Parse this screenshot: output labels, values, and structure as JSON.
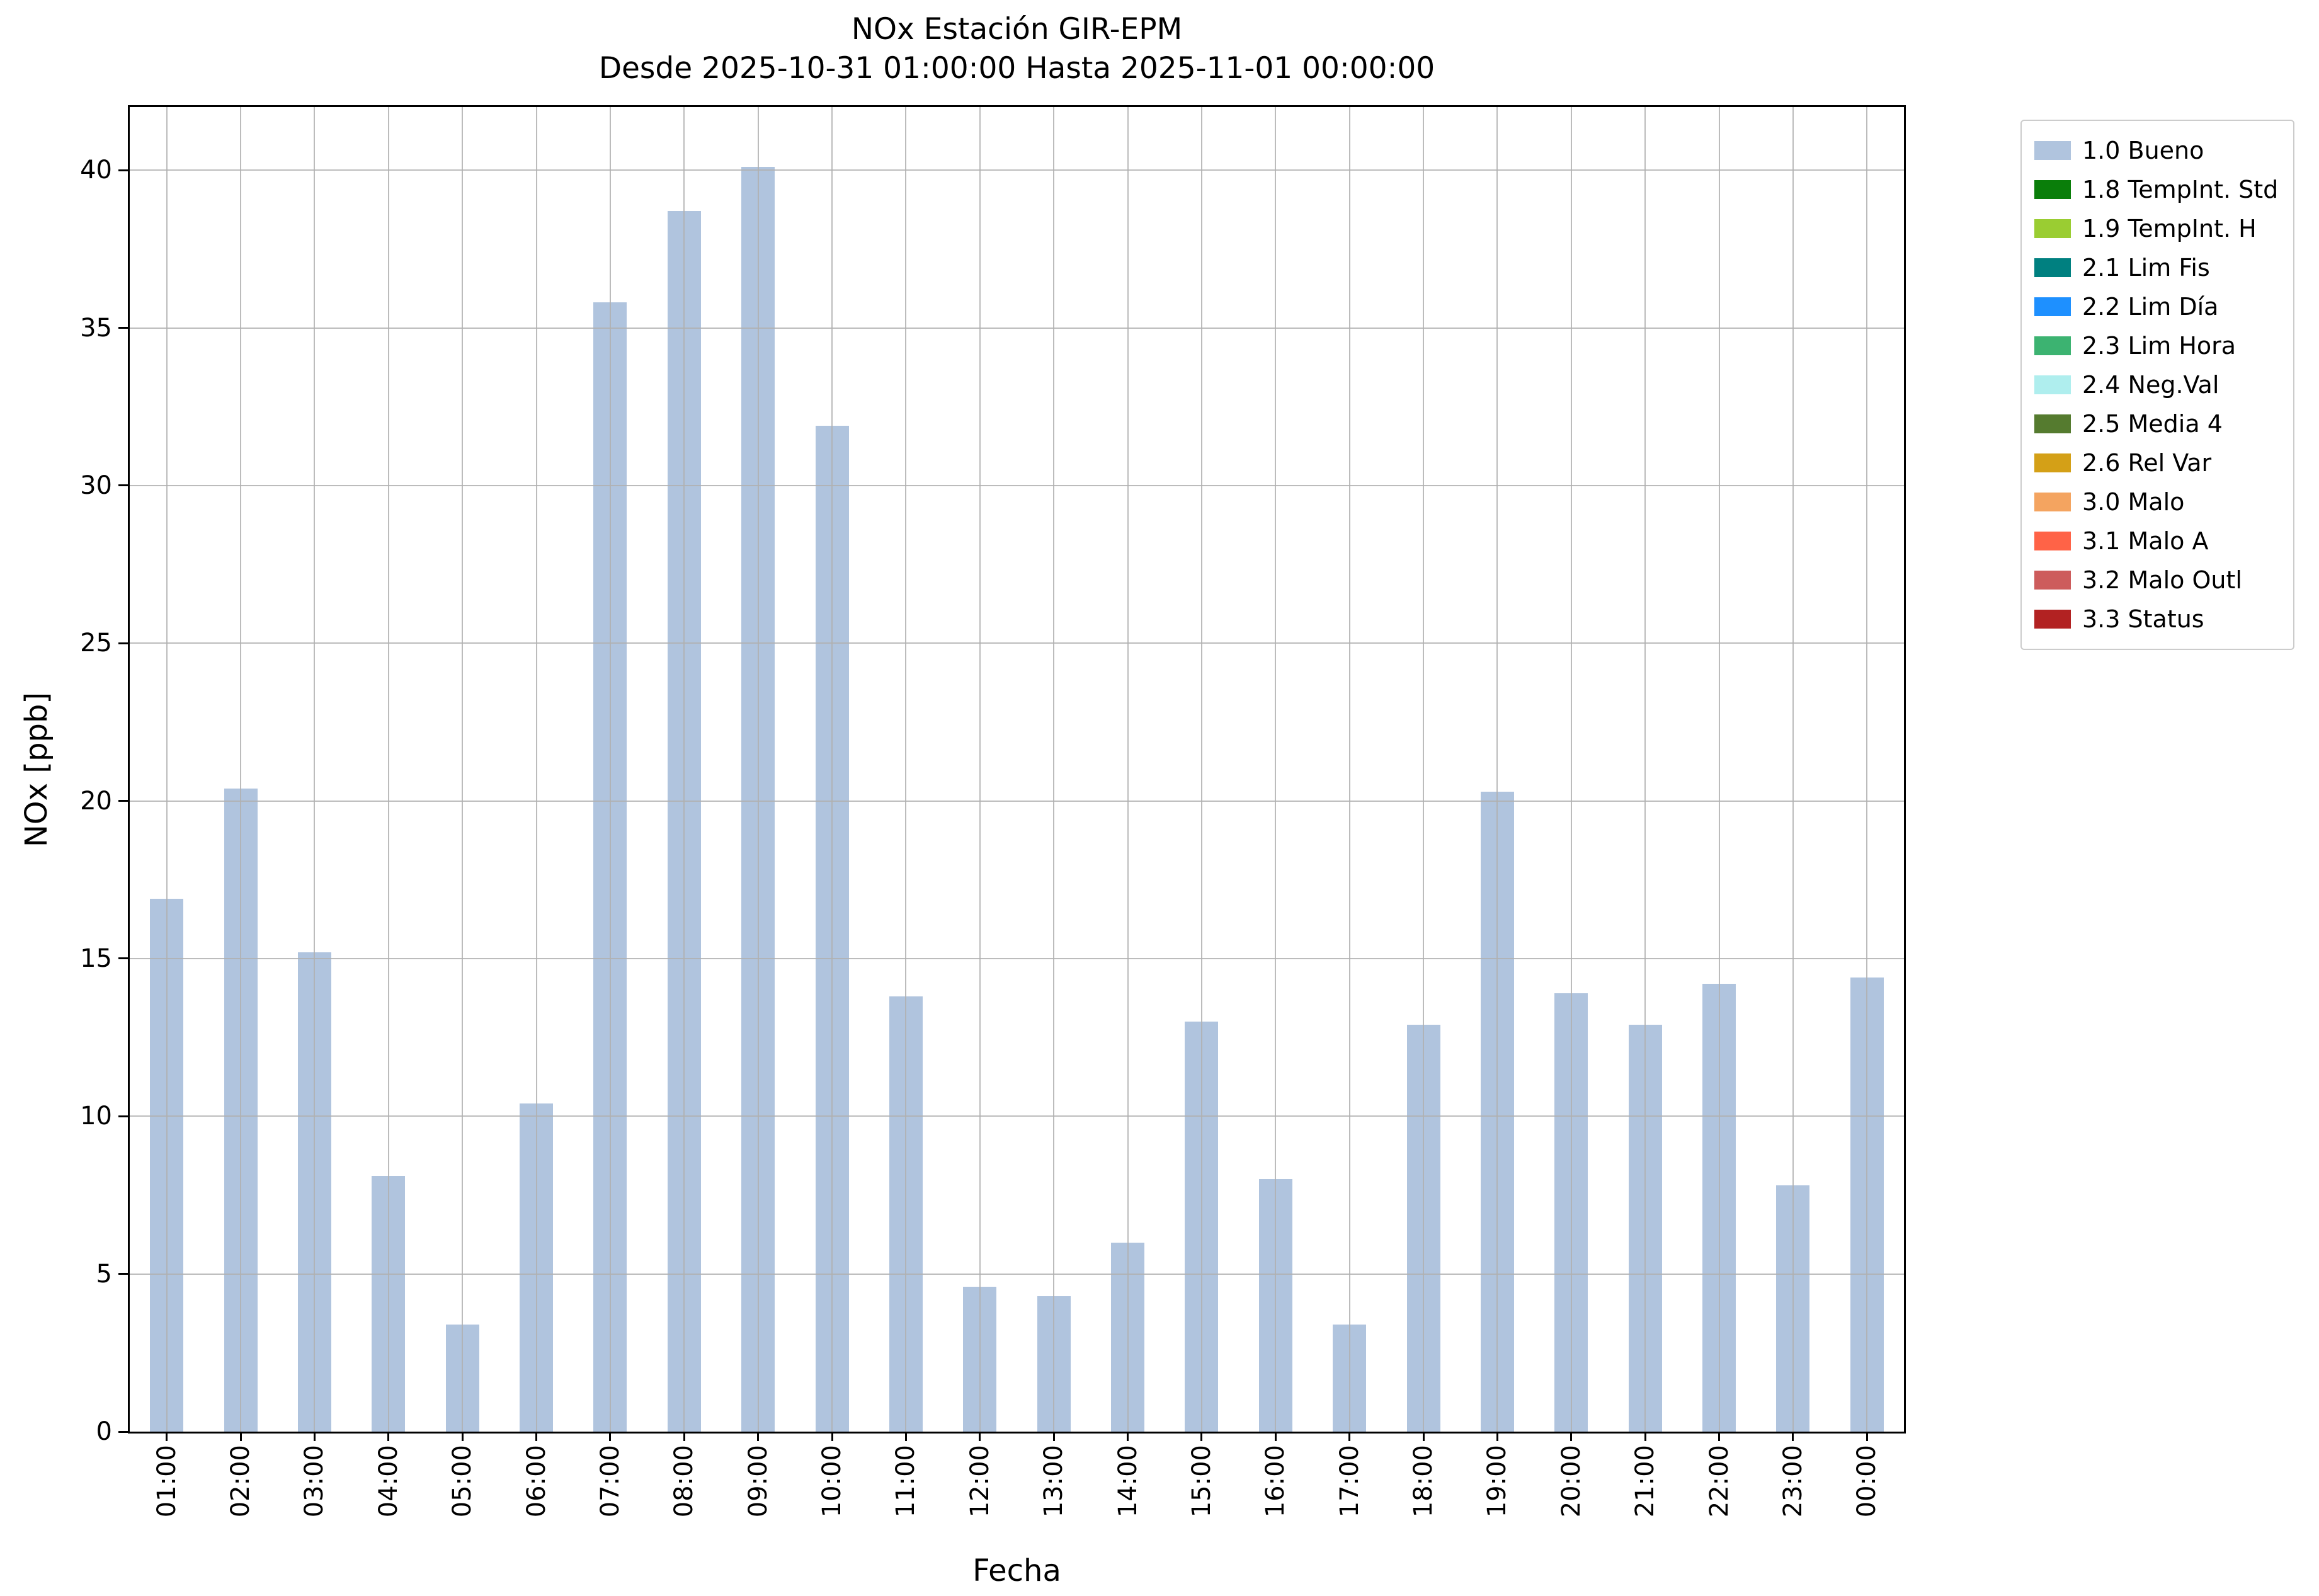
{
  "chart_data": {
    "type": "bar",
    "title": "NOx Estación GIR-EPM",
    "subtitle": "Desde 2025-10-31 01:00:00 Hasta 2025-11-01 00:00:00",
    "xlabel": "Fecha",
    "ylabel": "NOx [ppb]",
    "categories": [
      "01:00",
      "02:00",
      "03:00",
      "04:00",
      "05:00",
      "06:00",
      "07:00",
      "08:00",
      "09:00",
      "10:00",
      "11:00",
      "12:00",
      "13:00",
      "14:00",
      "15:00",
      "16:00",
      "17:00",
      "18:00",
      "19:00",
      "20:00",
      "21:00",
      "22:00",
      "23:00",
      "00:00"
    ],
    "values": [
      16.9,
      20.4,
      15.2,
      8.1,
      3.4,
      10.4,
      35.8,
      38.7,
      40.1,
      31.9,
      13.8,
      4.6,
      4.3,
      6.0,
      13.0,
      8.0,
      3.4,
      12.9,
      20.3,
      13.9,
      12.9,
      14.2,
      7.8,
      14.4
    ],
    "bar_color": "#b0c4de",
    "ylim": [
      0,
      42
    ],
    "yticks": [
      0,
      5,
      10,
      15,
      20,
      25,
      30,
      35,
      40
    ],
    "grid": true,
    "legend_position": "upper right outside",
    "legend": [
      {
        "label": "1.0 Bueno",
        "color": "#b0c4de"
      },
      {
        "label": "1.8 TempInt. Std",
        "color": "#0a7e0a"
      },
      {
        "label": "1.9 TempInt. H",
        "color": "#9acd32"
      },
      {
        "label": "2.1 Lim Fis",
        "color": "#008080"
      },
      {
        "label": "2.2 Lim Día",
        "color": "#1e90ff"
      },
      {
        "label": "2.3 Lim Hora",
        "color": "#3cb371"
      },
      {
        "label": "2.4 Neg.Val",
        "color": "#afeeee"
      },
      {
        "label": "2.5 Media 4",
        "color": "#557b2f"
      },
      {
        "label": "2.6 Rel Var",
        "color": "#d4a017"
      },
      {
        "label": "3.0 Malo",
        "color": "#f4a460"
      },
      {
        "label": "3.1 Malo A",
        "color": "#ff6347"
      },
      {
        "label": "3.2 Malo Outl",
        "color": "#cd5c5c"
      },
      {
        "label": "3.3 Status",
        "color": "#b22222"
      }
    ]
  }
}
